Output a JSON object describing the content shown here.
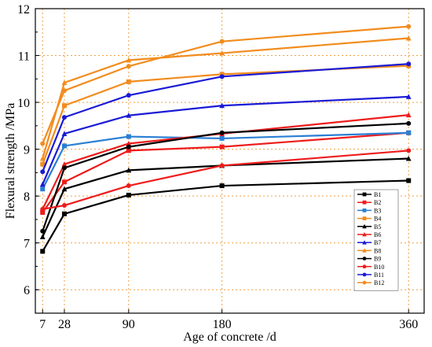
{
  "chart_data": {
    "type": "line",
    "xlabel": "Age of concrete /d",
    "ylabel": "Flexural strength /MPa",
    "x": [
      7,
      28,
      90,
      180,
      360
    ],
    "x_ticks": [
      "7",
      "28",
      "90",
      "180",
      "360"
    ],
    "xlim": [
      0,
      375
    ],
    "ylim": [
      5.5,
      12
    ],
    "y_ticks": [
      "6",
      "7",
      "8",
      "9",
      "10",
      "11",
      "12"
    ],
    "grid": true,
    "legend_position": "bottom-right",
    "series": [
      {
        "name": "B1",
        "color": "#000000",
        "marker": "square",
        "values": [
          6.82,
          7.62,
          8.02,
          8.22,
          8.33
        ]
      },
      {
        "name": "B2",
        "color": "#ee1c1c",
        "marker": "square",
        "values": [
          7.65,
          8.3,
          8.97,
          9.05,
          9.35
        ]
      },
      {
        "name": "B3",
        "color": "#2a7fd4",
        "marker": "square",
        "values": [
          8.15,
          9.07,
          9.27,
          9.23,
          9.35
        ]
      },
      {
        "name": "B4",
        "color": "#f28c1e",
        "marker": "square",
        "values": [
          8.68,
          9.93,
          10.44,
          10.6,
          10.78
        ]
      },
      {
        "name": "B5",
        "color": "#000000",
        "marker": "triangle",
        "values": [
          7.13,
          8.15,
          8.55,
          8.65,
          8.8
        ]
      },
      {
        "name": "B6",
        "color": "#ee1c1c",
        "marker": "triangle",
        "values": [
          7.72,
          8.68,
          9.12,
          9.33,
          9.73
        ]
      },
      {
        "name": "B7",
        "color": "#1a1ad6",
        "marker": "triangle",
        "values": [
          8.25,
          9.33,
          9.72,
          9.93,
          10.12
        ]
      },
      {
        "name": "B8",
        "color": "#f28c1e",
        "marker": "triangle",
        "values": [
          8.8,
          10.42,
          10.9,
          11.05,
          11.37
        ]
      },
      {
        "name": "B9",
        "color": "#000000",
        "marker": "circle",
        "values": [
          7.25,
          8.6,
          9.05,
          9.35,
          9.55
        ]
      },
      {
        "name": "B10",
        "color": "#ee1c1c",
        "marker": "circle",
        "values": [
          7.72,
          7.8,
          8.22,
          8.65,
          8.97
        ]
      },
      {
        "name": "B11",
        "color": "#1a1ad6",
        "marker": "circle",
        "values": [
          8.52,
          9.68,
          10.15,
          10.55,
          10.82
        ]
      },
      {
        "name": "B12",
        "color": "#f28c1e",
        "marker": "circle",
        "values": [
          9.12,
          10.25,
          10.77,
          11.3,
          11.62
        ]
      }
    ]
  }
}
